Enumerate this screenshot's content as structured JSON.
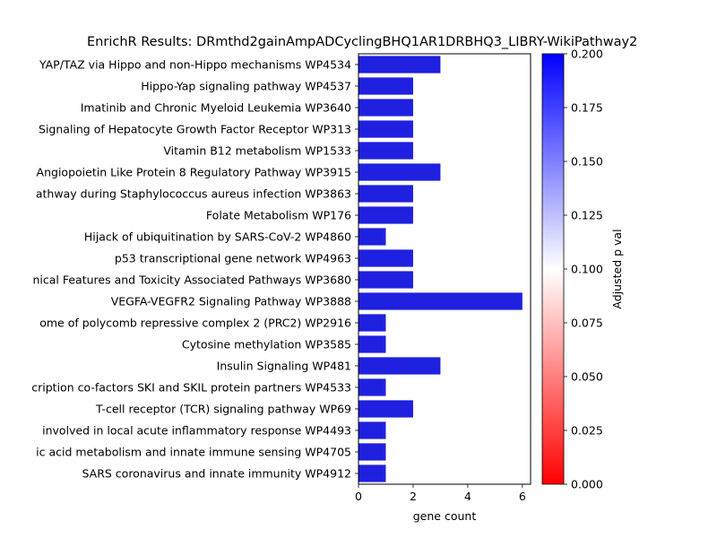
{
  "chart_data": {
    "type": "bar",
    "orientation": "horizontal",
    "title": "EnrichR Results: DRmthd2gainAmpADCyclingBHQ1AR1DRBHQ3_LIBRY-WikiPathway2",
    "xlabel": "gene count",
    "ylabel": "",
    "xlim": [
      0,
      6.3
    ],
    "xticks": [
      0,
      2,
      4,
      6
    ],
    "grid": false,
    "bar_color": "#2020e0",
    "categories": [
      "YAP/TAZ via Hippo and non-Hippo mechanisms WP4534",
      "Hippo-Yap signaling pathway WP4537",
      "Imatinib and Chronic Myeloid Leukemia WP3640",
      "Signaling of Hepatocyte Growth Factor Receptor WP313",
      "Vitamin B12 metabolism WP1533",
      "Angiopoietin Like Protein 8 Regulatory Pathway WP3915",
      "athway during Staphylococcus aureus infection WP3863",
      "Folate Metabolism WP176",
      "Hijack of ubiquitination by SARS-CoV-2 WP4860",
      "p53 transcriptional gene network WP4963",
      "nical Features and Toxicity Associated Pathways WP3680",
      "VEGFA-VEGFR2 Signaling Pathway WP3888",
      "ome of polycomb repressive complex 2 (PRC2)  WP2916",
      "Cytosine methylation WP3585",
      "Insulin Signaling WP481",
      "cription co-factors SKI and SKIL protein partners WP4533",
      "T-cell receptor (TCR) signaling pathway WP69",
      "involved in local acute inflammatory response  WP4493",
      "ic acid metabolism and innate immune sensing WP4705",
      "SARS coronavirus and innate immunity WP4912"
    ],
    "values": [
      3,
      2,
      2,
      2,
      2,
      3,
      2,
      2,
      1,
      2,
      2,
      6,
      1,
      1,
      3,
      1,
      2,
      1,
      1,
      1
    ],
    "colorbar": {
      "label": "Adjusted p val",
      "range": [
        0,
        0.2
      ],
      "ticks": [
        "0.000",
        "0.025",
        "0.050",
        "0.075",
        "0.100",
        "0.125",
        "0.150",
        "0.175",
        "0.200"
      ],
      "colors": [
        "#ff0000",
        "#ffffff",
        "#0000ff"
      ]
    }
  }
}
